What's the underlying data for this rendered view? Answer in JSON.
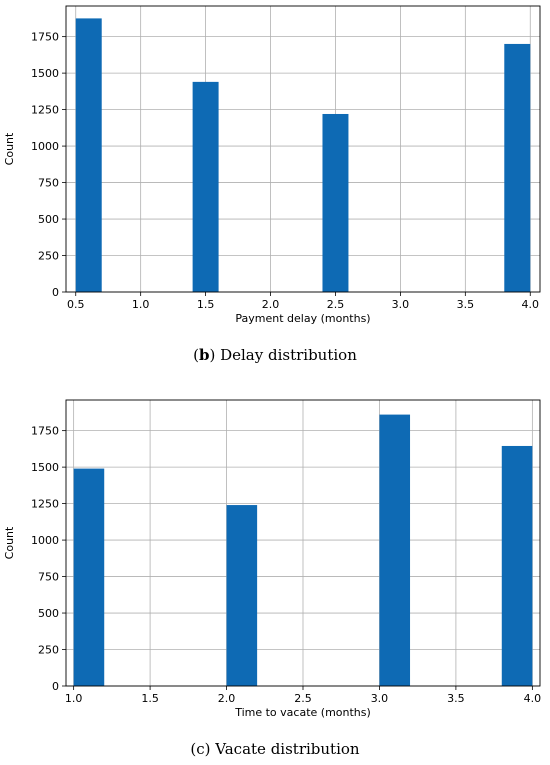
{
  "chart_data": [
    {
      "type": "bar",
      "id": "b",
      "bins": [
        {
          "x0": 0.5,
          "x1": 0.7,
          "value": 1875
        },
        {
          "x0": 1.4,
          "x1": 1.6,
          "value": 1440
        },
        {
          "x0": 2.4,
          "x1": 2.6,
          "value": 1220
        },
        {
          "x0": 3.8,
          "x1": 4.0,
          "value": 1700
        }
      ],
      "xlabel": "Payment delay (months)",
      "ylabel": "Count",
      "xlim": [
        0.425,
        4.075
      ],
      "ylim": [
        0,
        1960
      ],
      "xticks": [
        "0.5",
        "1.0",
        "1.5",
        "2.0",
        "2.5",
        "3.0",
        "3.5",
        "4.0"
      ],
      "xtick_values": [
        0.5,
        1.0,
        1.5,
        2.0,
        2.5,
        3.0,
        3.5,
        4.0
      ],
      "yticks": [
        "0",
        "250",
        "500",
        "750",
        "1000",
        "1250",
        "1500",
        "1750"
      ],
      "ytick_values": [
        0,
        250,
        500,
        750,
        1000,
        1250,
        1500,
        1750
      ],
      "grid": true,
      "bar_color": "#0e6ab4",
      "caption_prefix": "(",
      "caption_letter": "b",
      "caption_rest": ") Delay distribution"
    },
    {
      "type": "bar",
      "id": "c",
      "bins": [
        {
          "x0": 1.0,
          "x1": 1.2,
          "value": 1490
        },
        {
          "x0": 2.0,
          "x1": 2.2,
          "value": 1240
        },
        {
          "x0": 3.0,
          "x1": 3.2,
          "value": 1860
        },
        {
          "x0": 3.8,
          "x1": 4.0,
          "value": 1645
        }
      ],
      "xlabel": "Time to vacate (months)",
      "ylabel": "Count",
      "xlim": [
        0.95,
        4.05
      ],
      "ylim": [
        0,
        1960
      ],
      "xticks": [
        "1.0",
        "1.5",
        "2.0",
        "2.5",
        "3.0",
        "3.5",
        "4.0"
      ],
      "xtick_values": [
        1.0,
        1.5,
        2.0,
        2.5,
        3.0,
        3.5,
        4.0
      ],
      "yticks": [
        "0",
        "250",
        "500",
        "750",
        "1000",
        "1250",
        "1500",
        "1750"
      ],
      "ytick_values": [
        0,
        250,
        500,
        750,
        1000,
        1250,
        1500,
        1750
      ],
      "grid": true,
      "bar_color": "#0e6ab4",
      "caption_text": "(c) Vacate distribution"
    }
  ]
}
